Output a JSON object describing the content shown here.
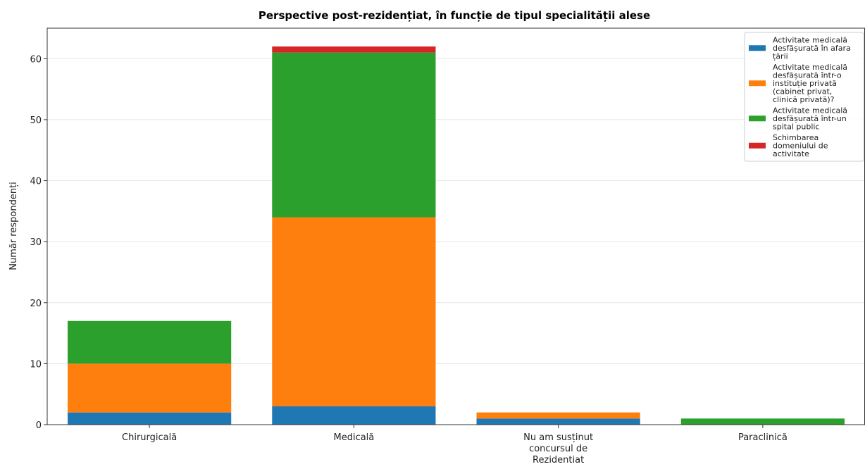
{
  "chart_data": {
    "type": "bar",
    "stacked": true,
    "title": "Perspective post-rezidențiat, în funcție de tipul specialității alese",
    "xlabel": "",
    "ylabel": "Număr respondenți",
    "ylim": [
      0,
      65
    ],
    "yticks": [
      "0",
      "10",
      "20",
      "30",
      "40",
      "50",
      "60"
    ],
    "grid": "horizontal",
    "legend_position": "top-right",
    "categories": [
      "Chirurgicală",
      "Medicală",
      "Nu am susținut concursul de Rezidentiat",
      "Paraclinică"
    ],
    "category_label_lines": [
      [
        "Chirurgicală"
      ],
      [
        "Medicală"
      ],
      [
        "Nu am susținut",
        "concursul de",
        "Rezidentiat"
      ],
      [
        "Paraclinică"
      ]
    ],
    "series": [
      {
        "name": "Activitate medicală desfășurată în afara țării",
        "legend_lines": [
          "Activitate medicală",
          "desfășurată în afara",
          "țării"
        ],
        "color": "#1f77b4",
        "values": [
          2,
          3,
          1,
          0
        ]
      },
      {
        "name": "Activitate medicală desfășurată într-o instituție privată (cabinet privat, clinică privată)?",
        "legend_lines": [
          "Activitate medicală",
          "desfășurată într-o",
          "instituție privată",
          "(cabinet privat,",
          "clinică privată)?"
        ],
        "color": "#ff7f0e",
        "values": [
          8,
          31,
          1,
          0
        ]
      },
      {
        "name": "Activitate medicală desfășurată într-un spital public",
        "legend_lines": [
          "Activitate medicală",
          "desfășurată într-un",
          "spital public"
        ],
        "color": "#2ca02c",
        "values": [
          7,
          27,
          0,
          1
        ]
      },
      {
        "name": "Schimbarea domeniului de activitate",
        "legend_lines": [
          "Schimbarea",
          "domeniului de",
          "activitate"
        ],
        "color": "#d62728",
        "values": [
          0,
          1,
          0,
          0
        ]
      }
    ]
  }
}
